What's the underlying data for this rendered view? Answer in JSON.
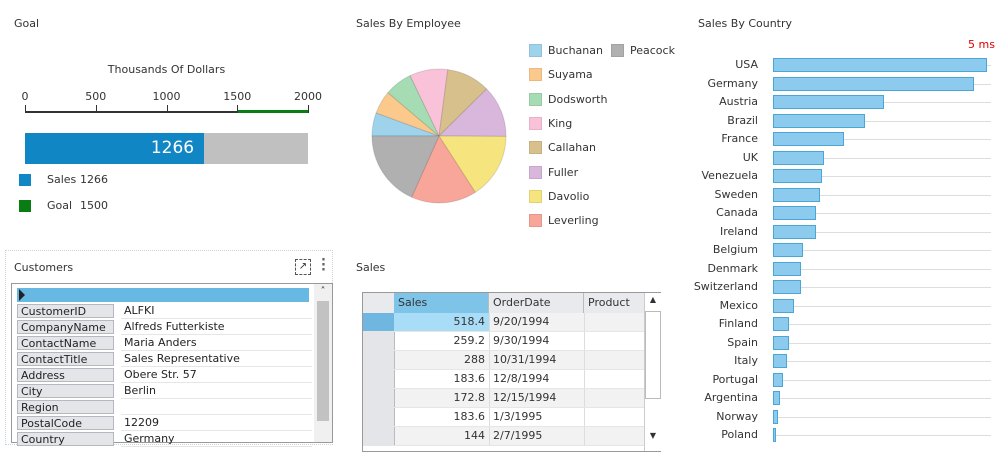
{
  "goal": {
    "title": "Goal",
    "axis_title": "Thousands Of Dollars",
    "ticks": [
      "0",
      "500",
      "1000",
      "1500",
      "2000"
    ],
    "min": 0,
    "max": 2000,
    "sales_value": 1266,
    "sales_label": "1266",
    "goal_value": 1500,
    "legend": [
      {
        "label": "Sales",
        "value": "1266",
        "color": "#1186c4"
      },
      {
        "label": "Goal",
        "value": "1500",
        "color": "#0a7d12"
      }
    ]
  },
  "employees": {
    "title": "Sales By Employee",
    "chart_data": {
      "type": "pie",
      "title": "Sales By Employee",
      "categories": [
        "Buchanan",
        "Suyama",
        "Dodsworth",
        "King",
        "Callahan",
        "Fuller",
        "Davolio",
        "Leverling",
        "Peacock"
      ],
      "values": [
        5.6,
        5.6,
        6.7,
        9.2,
        10.5,
        12.5,
        15.8,
        15.8,
        18.3
      ],
      "colors": [
        "#9fd3ec",
        "#fcc98c",
        "#a6dcb4",
        "#f9c2d8",
        "#d8c08c",
        "#d9b7dc",
        "#f6e47e",
        "#f8a59a",
        "#b0b0b0"
      ],
      "legend_placement": "right"
    }
  },
  "countries": {
    "title": "Sales By Country",
    "timing": "5 ms",
    "chart_data": {
      "type": "bar",
      "orientation": "horizontal",
      "title": "Sales By Country",
      "categories": [
        "USA",
        "Germany",
        "Austria",
        "Brazil",
        "France",
        "UK",
        "Venezuela",
        "Sweden",
        "Canada",
        "Ireland",
        "Belgium",
        "Denmark",
        "Switzerland",
        "Mexico",
        "Finland",
        "Spain",
        "Italy",
        "Portugal",
        "Argentina",
        "Norway",
        "Poland"
      ],
      "values": [
        100,
        94,
        52,
        43,
        33,
        24,
        23,
        22,
        20,
        20,
        14,
        13,
        13,
        10,
        7.5,
        7.5,
        6.5,
        4.7,
        3.3,
        2.3,
        1.4
      ],
      "value_units": "percent of max",
      "color": "#8ccbee"
    }
  },
  "customers": {
    "title": "Customers",
    "fields": [
      {
        "label": "CustomerID",
        "value": "ALFKI"
      },
      {
        "label": "CompanyName",
        "value": "Alfreds Futterkiste"
      },
      {
        "label": "ContactName",
        "value": "Maria Anders"
      },
      {
        "label": "ContactTitle",
        "value": "Sales Representative"
      },
      {
        "label": "Address",
        "value": "Obere Str. 57"
      },
      {
        "label": "City",
        "value": "Berlin"
      },
      {
        "label": "Region",
        "value": ""
      },
      {
        "label": "PostalCode",
        "value": "12209"
      },
      {
        "label": "Country",
        "value": "Germany"
      }
    ]
  },
  "sales": {
    "title": "Sales",
    "columns": [
      "Sales",
      "OrderDate",
      "Product"
    ],
    "rows": [
      [
        "518.4",
        "9/20/1994",
        ""
      ],
      [
        "259.2",
        "9/30/1994",
        ""
      ],
      [
        "288",
        "10/31/1994",
        ""
      ],
      [
        "183.6",
        "12/8/1994",
        ""
      ],
      [
        "172.8",
        "12/15/1994",
        ""
      ],
      [
        "183.6",
        "1/3/1995",
        ""
      ],
      [
        "144",
        "2/7/1995",
        ""
      ]
    ]
  }
}
